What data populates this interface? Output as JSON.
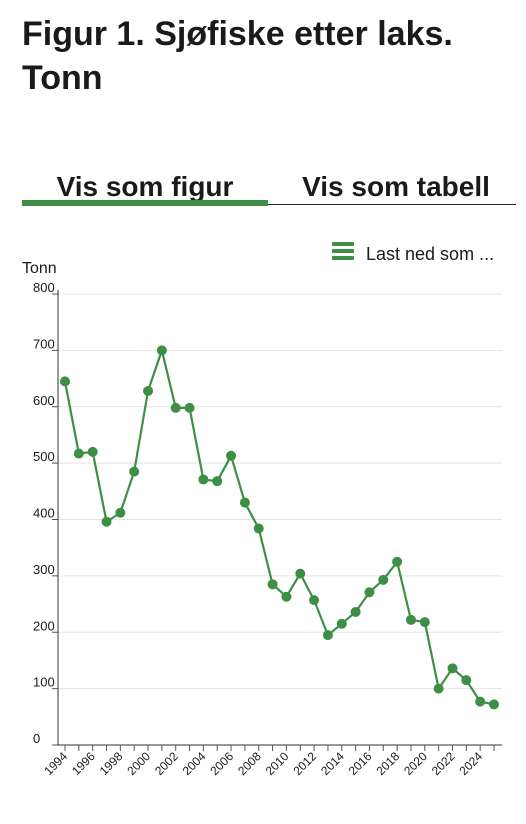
{
  "page": {
    "title": "Figur 1. Sjøfiske etter laks. Tonn",
    "tabs": [
      {
        "label": "Vis som figur",
        "active": true
      },
      {
        "label": "Vis som tabell",
        "active": false
      }
    ],
    "download_label": "Last ned som ...",
    "accent_color": "#3e8f46"
  },
  "chart_data": {
    "type": "line",
    "title": "Figur 1. Sjøfiske etter laks. Tonn",
    "ylabel": "Tonn",
    "xlabel": "",
    "ylim": [
      0,
      800
    ],
    "yticks": [
      0,
      100,
      200,
      300,
      400,
      500,
      600,
      700,
      800
    ],
    "xtick_labels": [
      "1994",
      "1996",
      "1998",
      "2000",
      "2002",
      "2004",
      "2006",
      "2008",
      "2010",
      "2012",
      "2014",
      "2016",
      "2018",
      "2020",
      "2022",
      "2024"
    ],
    "grid": true,
    "series": [
      {
        "color": "#3e8f46",
        "x": [
          1994,
          1995,
          1996,
          1997,
          1998,
          1999,
          2000,
          2001,
          2002,
          2003,
          2004,
          2005,
          2006,
          2007,
          2008,
          2009,
          2010,
          2011,
          2012,
          2013,
          2014,
          2015,
          2016,
          2017,
          2018,
          2019,
          2020,
          2021,
          2022,
          2023,
          2024,
          2025
        ],
        "values": [
          645,
          517,
          520,
          396,
          412,
          485,
          628,
          700,
          598,
          598,
          471,
          468,
          513,
          430,
          384,
          285,
          263,
          304,
          257,
          195,
          215,
          236,
          271,
          293,
          325,
          222,
          218,
          100,
          136,
          115,
          77,
          72
        ]
      }
    ]
  }
}
